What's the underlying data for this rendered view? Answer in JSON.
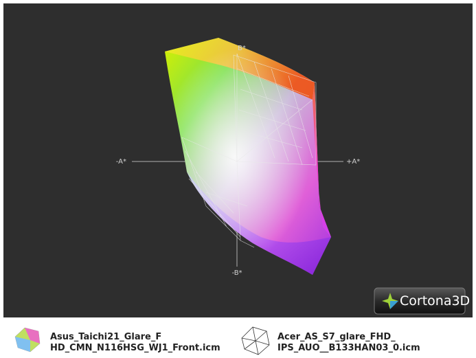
{
  "viewer": {
    "axes": {
      "minus_a": "-A*",
      "plus_a": "+A*",
      "plus_b": "B*",
      "minus_b": "-B*"
    },
    "logo": "Cortona3D"
  },
  "legend": [
    {
      "lines": [
        "Asus_Taichi21_Glare_F",
        "HD_CMN_N116HSG_WJ1_Front.icm"
      ]
    },
    {
      "lines": [
        "Acer_AS_S7_glare_FHD_",
        "IPS_AUO__B133HAN03_0.icm"
      ]
    }
  ]
}
